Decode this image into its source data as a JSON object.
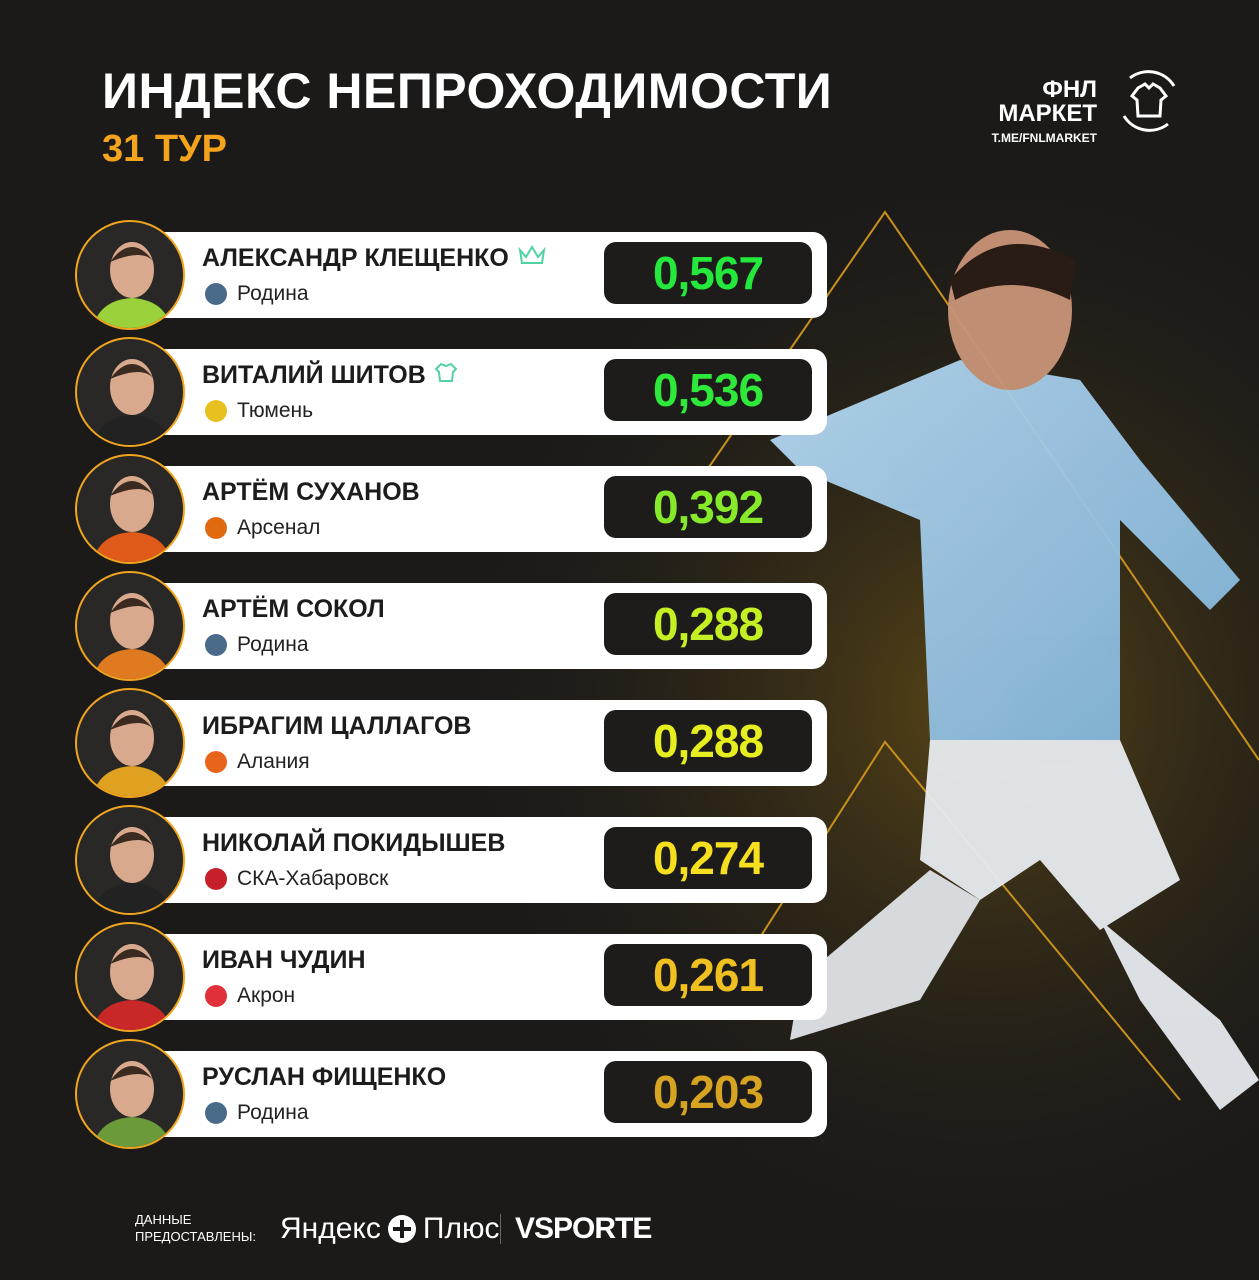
{
  "header": {
    "title": "ИНДЕКС НЕПРОХОДИМОСТИ",
    "subtitle": "31 ТУР"
  },
  "logo": {
    "line1": "ФНЛ",
    "line2": "МАРКЕТ",
    "link": "T.ME/FNLMARKET",
    "icon": "shirt-cycle-icon"
  },
  "colors": {
    "accent": "#f3a41c",
    "card": "#ffffff",
    "value_bg": "#1d1c1b",
    "background": "#1b1a19"
  },
  "players": [
    {
      "name": "АЛЕКСАНДР КЛЕЩЕНКО",
      "club": "Родина",
      "value": "0,567",
      "color": "#24e83c",
      "badge_icon": "crown-icon",
      "club_color": "#4a6a8a"
    },
    {
      "name": "ВИТАЛИЙ ШИТОВ",
      "club": "Тюмень",
      "value": "0,536",
      "color": "#2ee83a",
      "badge_icon": "shirt-icon",
      "club_color": "#e8c020"
    },
    {
      "name": "АРТЁМ СУХАНОВ",
      "club": "Арсенал",
      "value": "0,392",
      "color": "#86ea2a",
      "badge_icon": "",
      "club_color": "#e06a10"
    },
    {
      "name": "АРТЁМ СОКОЛ",
      "club": "Родина",
      "value": "0,288",
      "color": "#c4ef22",
      "badge_icon": "",
      "club_color": "#4a6a8a"
    },
    {
      "name": "ИБРАГИМ ЦАЛЛАГОВ",
      "club": "Алания",
      "value": "0,288",
      "color": "#e6ee20",
      "badge_icon": "",
      "club_color": "#e8641a"
    },
    {
      "name": "НИКОЛАЙ ПОКИДЫШЕВ",
      "club": "СКА-Хабаровск",
      "value": "0,274",
      "color": "#f5df1e",
      "badge_icon": "",
      "club_color": "#c8202a"
    },
    {
      "name": "ИВАН ЧУДИН",
      "club": "Акрон",
      "value": "0,261",
      "color": "#f0c020",
      "badge_icon": "",
      "club_color": "#e0303a"
    },
    {
      "name": "РУСЛАН ФИЩЕНКО",
      "club": "Родина",
      "value": "0,203",
      "color": "#d6a420",
      "badge_icon": "",
      "club_color": "#4a6a8a"
    }
  ],
  "footer": {
    "label_line1": "ДАННЫЕ",
    "label_line2": "ПРЕДОСТАВЛЕНЫ:",
    "sponsor1": "Яндекс",
    "sponsor1b": "Плюс",
    "sponsor2": "VSPORTE"
  }
}
